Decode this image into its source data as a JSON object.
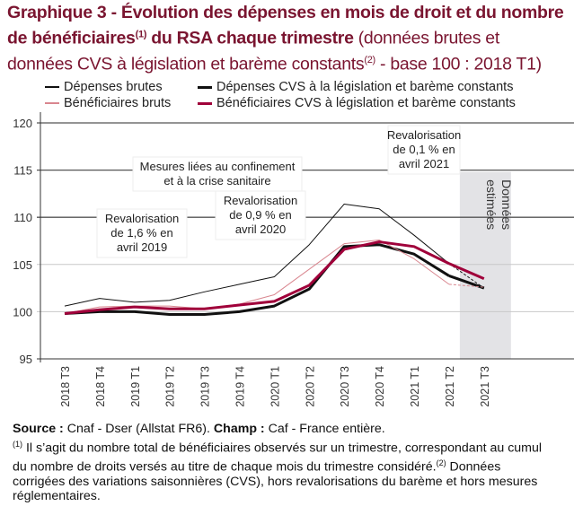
{
  "title": {
    "bold": "Graphique 3 - Évolution des dépenses en mois de droit et du nombre de bénéficiaires",
    "bold_sup": "(1)",
    "bold_end": " du RSA chaque trimestre",
    "light": " (données brutes et données CVS à législation et barème constants",
    "light_sup": "(2)",
    "light_end": " - base 100 : 2018 T1)"
  },
  "colors": {
    "title": "#7a1530",
    "black": "#111111",
    "dark_red": "#a0003a",
    "light_red": "#d9868f",
    "shade": "#e3e3e6"
  },
  "chart_data": {
    "type": "line",
    "x": [
      "2018 T3",
      "2018 T4",
      "2019 T1",
      "2019 T2",
      "2019 T3",
      "2019 T4",
      "2020 T1",
      "2020 T2",
      "2020 T3",
      "2020 T4",
      "2021 T1",
      "2021 T2",
      "2021 T3"
    ],
    "ylim": [
      95,
      120
    ],
    "yticks": [
      95,
      100,
      105,
      110,
      115,
      120
    ],
    "grid": true,
    "legend_position": "top",
    "series": [
      {
        "name": "Dépenses brutes",
        "color": "#111111",
        "width": 1,
        "values": [
          100.6,
          101.4,
          101.0,
          101.2,
          102.1,
          102.9,
          103.7,
          107.1,
          111.4,
          110.9,
          108.1,
          105.1,
          102.5
        ]
      },
      {
        "name": "Dépenses CVS à la législation et barème constants",
        "color": "#111111",
        "width": 3,
        "values": [
          99.8,
          100.0,
          100.0,
          99.7,
          99.7,
          100.0,
          100.6,
          102.4,
          106.9,
          107.1,
          106.1,
          103.8,
          102.5
        ]
      },
      {
        "name": "Bénéficiaires bruts",
        "color": "#d9868f",
        "width": 1,
        "values": [
          99.8,
          100.5,
          100.6,
          100.6,
          100.3,
          100.8,
          101.8,
          104.5,
          107.2,
          107.6,
          105.6,
          102.9,
          102.6
        ]
      },
      {
        "name": "Bénéficiaires CVS à législation et barème constants",
        "color": "#a0003a",
        "width": 3,
        "values": [
          99.8,
          100.2,
          100.5,
          100.3,
          100.3,
          100.7,
          101.1,
          102.8,
          106.6,
          107.4,
          106.9,
          105.1,
          103.5
        ]
      }
    ],
    "estimated_region": {
      "from": "2021 T2",
      "to": "2021 T3",
      "label": [
        "Données",
        "estimées"
      ]
    },
    "annotations": [
      {
        "lines": [
          "Revalorisation",
          "de 1,6 % en",
          "avril 2019"
        ]
      },
      {
        "lines": [
          "Mesures liées au confinement",
          "et à la crise sanitaire"
        ]
      },
      {
        "lines": [
          "Revalorisation",
          "de 0,9 % en",
          "avril 2020"
        ]
      },
      {
        "lines": [
          "Revalorisation",
          "de 0,1 % en",
          "avril 2021"
        ]
      }
    ]
  },
  "footer": {
    "source_label": "Source :",
    "source": " Cnaf - Dser (Allstat FR6). ",
    "champ_label": "Champ :",
    "champ": " Caf - France entière.",
    "note1_sup": "(1)",
    "note1": " Il s’agit du nombre total de bénéficiaires observés sur un trimestre, correspondant au cumul du nombre de droits versés au titre de chaque mois du trimestre considéré.",
    "note2_sup": "(2)",
    "note2": " Données corrigées des variations saisonnières (CVS), hors revalorisations du barème et hors mesures réglementaires."
  }
}
